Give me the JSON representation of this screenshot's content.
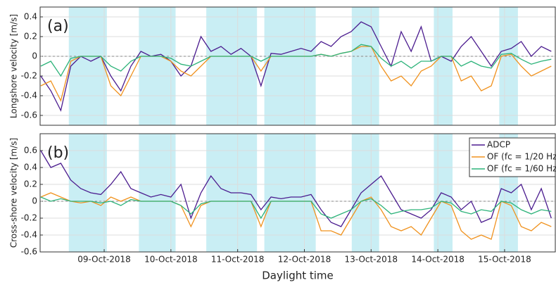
{
  "chart_data": [
    {
      "type": "line",
      "panel_label": "(a)",
      "ylabel": "Longshore velocity [m/s]",
      "xlim": [
        8.04,
        15.76
      ],
      "ylim": [
        -0.7,
        0.5
      ],
      "yticks": [
        -0.6,
        -0.4,
        -0.2,
        0,
        0.2,
        0.4
      ],
      "grid": true,
      "hline": 0,
      "shade_color": "#c9eef4",
      "shaded_regions": [
        [
          8.47,
          9.04
        ],
        [
          9.52,
          10.07
        ],
        [
          10.53,
          11.29
        ],
        [
          11.4,
          12.17
        ],
        [
          12.71,
          13.12
        ],
        [
          13.94,
          14.22
        ],
        [
          14.92,
          15.2
        ]
      ],
      "x": [
        8.05,
        8.2,
        8.35,
        8.5,
        8.65,
        8.8,
        8.95,
        9.1,
        9.25,
        9.4,
        9.55,
        9.7,
        9.85,
        10.0,
        10.15,
        10.3,
        10.45,
        10.6,
        10.75,
        10.9,
        11.05,
        11.2,
        11.35,
        11.5,
        11.65,
        11.8,
        11.95,
        12.1,
        12.25,
        12.4,
        12.55,
        12.7,
        12.85,
        13.0,
        13.15,
        13.3,
        13.45,
        13.6,
        13.75,
        13.9,
        14.05,
        14.2,
        14.35,
        14.5,
        14.65,
        14.8,
        14.95,
        15.1,
        15.25,
        15.4,
        15.55,
        15.7
      ],
      "series": [
        {
          "color": "#4b1c8f",
          "values": [
            -0.2,
            -0.35,
            -0.55,
            -0.1,
            0.0,
            -0.05,
            0.0,
            -0.2,
            -0.35,
            -0.1,
            0.05,
            0.0,
            0.02,
            -0.05,
            -0.2,
            -0.1,
            0.2,
            0.05,
            0.1,
            0.02,
            0.08,
            0.0,
            -0.3,
            0.03,
            0.02,
            0.05,
            0.08,
            0.05,
            0.15,
            0.1,
            0.2,
            0.25,
            0.35,
            0.3,
            0.1,
            -0.1,
            0.25,
            0.05,
            0.3,
            -0.05,
            0.0,
            -0.05,
            0.1,
            0.2,
            0.05,
            -0.1,
            0.05,
            0.08,
            0.15,
            0.0,
            0.1,
            0.05
          ]
        },
        {
          "color": "#f0921e",
          "values": [
            -0.3,
            -0.25,
            -0.45,
            -0.05,
            0.0,
            0.0,
            0.0,
            -0.3,
            -0.4,
            -0.2,
            0.0,
            0.0,
            0.0,
            -0.05,
            -0.15,
            -0.2,
            -0.1,
            0.0,
            0.0,
            0.0,
            0.0,
            0.0,
            -0.15,
            0.0,
            0.0,
            0.0,
            0.0,
            0.0,
            0.02,
            0.0,
            0.03,
            0.05,
            0.1,
            0.1,
            -0.1,
            -0.25,
            -0.2,
            -0.3,
            -0.15,
            -0.1,
            0.0,
            0.0,
            -0.25,
            -0.2,
            -0.35,
            -0.3,
            0.0,
            0.02,
            -0.1,
            -0.2,
            -0.15,
            -0.1
          ]
        },
        {
          "color": "#2db37a",
          "values": [
            -0.1,
            -0.05,
            -0.2,
            -0.02,
            0.0,
            0.0,
            0.0,
            -0.1,
            -0.15,
            -0.05,
            0.0,
            0.0,
            0.0,
            -0.02,
            -0.08,
            -0.1,
            -0.05,
            0.0,
            0.0,
            0.0,
            0.0,
            0.0,
            -0.05,
            0.0,
            0.0,
            0.0,
            0.0,
            0.0,
            0.02,
            0.0,
            0.03,
            0.05,
            0.12,
            0.1,
            -0.02,
            -0.1,
            -0.05,
            -0.12,
            -0.05,
            -0.05,
            0.0,
            0.0,
            -0.1,
            -0.05,
            -0.1,
            -0.12,
            0.02,
            0.03,
            -0.03,
            -0.08,
            -0.05,
            -0.03
          ]
        }
      ]
    },
    {
      "type": "line",
      "panel_label": "(b)",
      "ylabel": "Cross-shore velocity [m/s]",
      "xlabel": "Daylight time",
      "xlim": [
        8.04,
        15.76
      ],
      "ylim": [
        -0.6,
        0.8
      ],
      "yticks": [
        -0.6,
        -0.4,
        -0.2,
        0,
        0.2,
        0.4,
        0.6
      ],
      "grid": true,
      "hline": 0,
      "xticks": [
        {
          "value": 9,
          "label": "09-Oct-2018"
        },
        {
          "value": 10,
          "label": "10-Oct-2018"
        },
        {
          "value": 11,
          "label": "11-Oct-2018"
        },
        {
          "value": 12,
          "label": "12-Oct-2018"
        },
        {
          "value": 13,
          "label": "13-Oct-2018"
        },
        {
          "value": 14,
          "label": "14-Oct-2018"
        },
        {
          "value": 15,
          "label": "15-Oct-2018"
        }
      ],
      "legend": "upper right",
      "shade_color": "#c9eef4",
      "shaded_regions": [
        [
          8.47,
          9.04
        ],
        [
          9.52,
          10.07
        ],
        [
          10.53,
          11.29
        ],
        [
          11.4,
          12.17
        ],
        [
          12.71,
          13.12
        ],
        [
          13.94,
          14.22
        ],
        [
          14.92,
          15.2
        ]
      ],
      "x": [
        8.05,
        8.2,
        8.35,
        8.5,
        8.65,
        8.8,
        8.95,
        9.1,
        9.25,
        9.4,
        9.55,
        9.7,
        9.85,
        10.0,
        10.15,
        10.3,
        10.45,
        10.6,
        10.75,
        10.9,
        11.05,
        11.2,
        11.35,
        11.5,
        11.65,
        11.8,
        11.95,
        12.1,
        12.25,
        12.4,
        12.55,
        12.7,
        12.85,
        13.0,
        13.15,
        13.3,
        13.45,
        13.6,
        13.75,
        13.9,
        14.05,
        14.2,
        14.35,
        14.5,
        14.65,
        14.8,
        14.95,
        15.1,
        15.25,
        15.4,
        15.55,
        15.7
      ],
      "series": [
        {
          "name": "ADCP",
          "color": "#4b1c8f",
          "values": [
            0.6,
            0.4,
            0.45,
            0.25,
            0.15,
            0.1,
            0.08,
            0.2,
            0.35,
            0.15,
            0.1,
            0.05,
            0.08,
            0.05,
            0.2,
            -0.2,
            0.1,
            0.3,
            0.15,
            0.1,
            0.1,
            0.08,
            -0.1,
            0.05,
            0.03,
            0.05,
            0.05,
            0.08,
            -0.1,
            -0.25,
            -0.3,
            -0.1,
            0.1,
            0.2,
            0.3,
            0.1,
            -0.1,
            -0.15,
            -0.2,
            -0.1,
            0.1,
            0.05,
            -0.1,
            0.0,
            -0.25,
            -0.2,
            0.15,
            0.1,
            0.2,
            -0.1,
            0.15,
            -0.2
          ]
        },
        {
          "name": "OF (fc = 1/20 Hz)",
          "color": "#f0921e",
          "values": [
            0.05,
            0.1,
            0.05,
            0.0,
            -0.02,
            0.0,
            -0.05,
            0.05,
            0.0,
            0.05,
            0.0,
            0.0,
            0.0,
            0.0,
            -0.05,
            -0.3,
            -0.05,
            0.0,
            0.0,
            0.0,
            0.0,
            0.0,
            -0.3,
            0.0,
            0.0,
            0.0,
            0.0,
            0.0,
            -0.35,
            -0.35,
            -0.4,
            -0.2,
            0.0,
            0.05,
            -0.1,
            -0.3,
            -0.35,
            -0.3,
            -0.4,
            -0.2,
            0.0,
            -0.05,
            -0.35,
            -0.45,
            -0.4,
            -0.45,
            0.0,
            -0.05,
            -0.3,
            -0.35,
            -0.25,
            -0.3
          ]
        },
        {
          "name": "OF (fc = 1/60 Hz)",
          "color": "#2db37a",
          "values": [
            0.05,
            0.0,
            0.03,
            0.0,
            0.0,
            0.0,
            -0.02,
            0.0,
            -0.05,
            0.02,
            0.0,
            0.0,
            0.0,
            0.0,
            -0.05,
            -0.15,
            -0.03,
            0.0,
            0.0,
            0.0,
            0.0,
            0.0,
            -0.2,
            0.0,
            0.0,
            0.0,
            0.0,
            0.0,
            -0.15,
            -0.2,
            -0.15,
            -0.1,
            0.0,
            0.03,
            -0.05,
            -0.15,
            -0.12,
            -0.1,
            -0.1,
            -0.08,
            0.0,
            -0.02,
            -0.12,
            -0.15,
            -0.1,
            -0.12,
            0.0,
            -0.02,
            -0.1,
            -0.15,
            -0.1,
            -0.12
          ]
        }
      ]
    }
  ]
}
